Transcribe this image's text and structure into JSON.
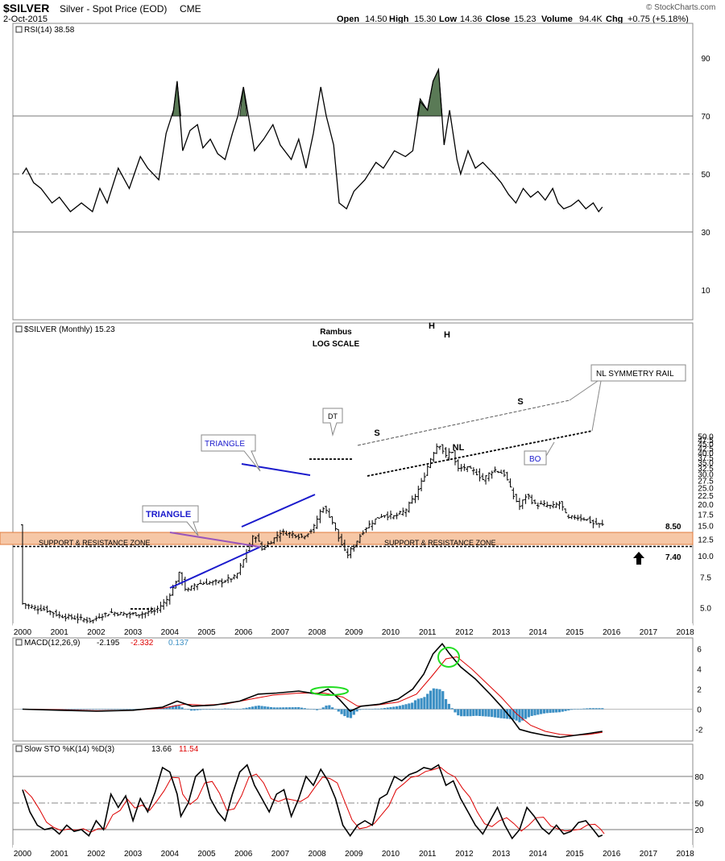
{
  "header": {
    "symbol": "$SILVER",
    "description": "Silver - Spot Price (EOD)",
    "exchange": "CME",
    "date": "2-Oct-2015",
    "open_label": "Open",
    "open": "14.50",
    "high_label": "High",
    "high": "15.30",
    "low_label": "Low",
    "low": "14.36",
    "close_label": "Close",
    "close": "15.23",
    "volume_label": "Volume",
    "volume": "94.4K",
    "chg_label": "Chg",
    "chg": "+0.75 (+5.18%)",
    "watermark": "© StockCharts.com"
  },
  "rsi_panel": {
    "legend": "RSI(14) 38.58",
    "ticks": [
      "90",
      "70",
      "50",
      "30",
      "10"
    ]
  },
  "price_panel": {
    "legend": "$SILVER (Monthly) 15.23",
    "ticks": [
      "50.0",
      "47.5",
      "45.0",
      "42.5",
      "40.0",
      "37.5",
      "35.0",
      "32.5",
      "30.0",
      "27.5",
      "25.0",
      "22.5",
      "20.0",
      "17.5",
      "15.0",
      "12.5",
      "10.0",
      "7.5",
      "5.0"
    ],
    "level_high": "8.50",
    "level_low": "7.40"
  },
  "annotations": {
    "author": "Rambus",
    "scale": "LOG SCALE",
    "h1": "H",
    "h2": "H",
    "s1": "S",
    "s2": "S",
    "nl": "NL",
    "dt": "DT",
    "triangle1": "TRIANGLE",
    "triangle2": "TRIANGLE",
    "zone_left": "SUPPORT & RESISTANCE ZONE",
    "zone_right": "SUPPORT & RESISTANCE ZONE",
    "nl_rail": "NL SYMMETRY RAIL",
    "bo": "BO"
  },
  "macd_panel": {
    "legend_name": "MACD(12,26,9)",
    "macd": "-2.195",
    "signal": "-2.332",
    "hist": "0.137",
    "ticks": [
      "6",
      "4",
      "2",
      "0",
      "-2"
    ]
  },
  "sto_panel": {
    "legend_name": "Slow STO %K(14) %D(3)",
    "k": "13.66",
    "d": "11.54",
    "ticks": [
      "80",
      "50",
      "20"
    ]
  },
  "x_axis": {
    "years": [
      "2000",
      "2001",
      "2002",
      "2003",
      "2004",
      "2005",
      "2006",
      "2007",
      "2008",
      "2009",
      "2010",
      "2011",
      "2012",
      "2013",
      "2014",
      "2015",
      "2016",
      "2017",
      "2018"
    ]
  },
  "colors": {
    "zone_fill": "#f6c7a6",
    "zone_border": "#e07b3c",
    "pattern_blue": "#1a1acc",
    "rsi_fill": "#5a7a56",
    "macd_signal": "#dd0000",
    "histogram": "#3b8fc4",
    "circle_green": "#22dd22",
    "triangle_purple": "#9955bb"
  },
  "chart_data": {
    "type": "line",
    "title": "$SILVER Silver - Spot Price (EOD) CME",
    "x": [
      2000,
      2001,
      2002,
      2003,
      2004,
      2005,
      2006,
      2007,
      2008,
      2009,
      2010,
      2011,
      2012,
      2013,
      2014,
      2015,
      2015.75
    ],
    "series": [
      {
        "name": "$SILVER (Monthly)",
        "values": [
          5.2,
          4.6,
          4.5,
          4.8,
          6.8,
          7.3,
          11.0,
          13.5,
          17.0,
          11.5,
          17.5,
          37.0,
          31.0,
          24.0,
          19.5,
          16.0,
          15.23
        ]
      },
      {
        "name": "RSI(14)",
        "values": [
          50,
          41,
          42,
          46,
          75,
          58,
          70,
          60,
          72,
          42,
          58,
          75,
          52,
          47,
          41,
          38,
          38.58
        ]
      },
      {
        "name": "MACD(12,26,9)",
        "values": [
          0,
          0,
          0,
          0,
          0.5,
          0.6,
          1.2,
          1.5,
          1.6,
          0,
          0.8,
          4.5,
          3.5,
          -1.0,
          -2.0,
          -2.4,
          -2.195
        ]
      },
      {
        "name": "Slow STO %K(14) %D(3)",
        "values": [
          40,
          20,
          60,
          30,
          85,
          60,
          85,
          70,
          80,
          20,
          70,
          85,
          50,
          20,
          20,
          30,
          13.66
        ]
      }
    ],
    "ylim_price": [
      4,
      52
    ],
    "ylim_rsi": [
      0,
      100
    ],
    "ylim_macd": [
      -3,
      7
    ],
    "ylim_sto": [
      0,
      100
    ],
    "levels": [
      8.5,
      7.4
    ],
    "yscale": "log"
  }
}
